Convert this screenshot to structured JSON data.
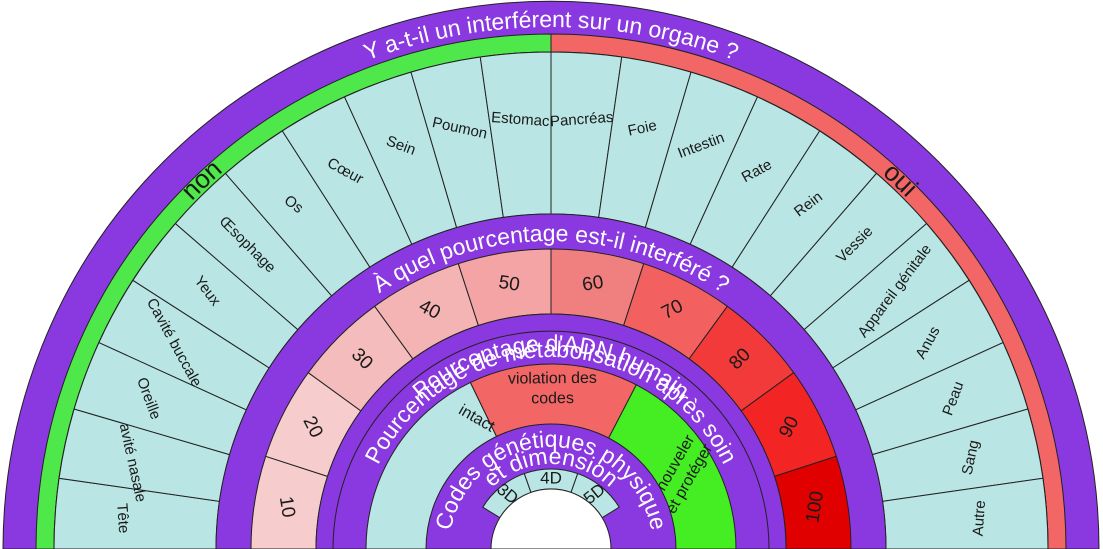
{
  "colors": {
    "purple": "#8a38e0",
    "green": "#4ee84a",
    "red": "#f26666",
    "teal": "#b9e6e4",
    "stroke": "#222222",
    "bright_green": "#44ee22"
  },
  "titles": {
    "organ_question": "Y a-t-il un interférent sur un organe ?",
    "percent_question": "À quel pourcentage est-il interféré ?",
    "dna": "Pourcentage d'ADN humain",
    "metabolisation": "Pourcentage de métabolisation après soin",
    "codes": "Codes génétiques  physique",
    "codes_line2": "et dimension"
  },
  "answers": {
    "no": "non",
    "yes": "oui"
  },
  "organs": [
    "Tête",
    "Cavité nasale",
    "Oreille",
    "Cavité buccale",
    "Yeux",
    "Œsophage",
    "Os",
    "Cœur",
    "Sein",
    "Poumon",
    "Estomac",
    "Pancréas",
    "Foie",
    "Intestin",
    "Rate",
    "Rein",
    "Vessie",
    "Appareil génitale",
    "Anus",
    "Peau",
    "Sang",
    "Autre"
  ],
  "percentages": [
    {
      "label": "10",
      "color": "#f6cccc"
    },
    {
      "label": "20",
      "color": "#f6cccc"
    },
    {
      "label": "30",
      "color": "#f4bcbc"
    },
    {
      "label": "40",
      "color": "#f4b4b4"
    },
    {
      "label": "50",
      "color": "#f4a4a4"
    },
    {
      "label": "60",
      "color": "#f08080"
    },
    {
      "label": "70",
      "color": "#f26060"
    },
    {
      "label": "80",
      "color": "#f23a3a"
    },
    {
      "label": "90",
      "color": "#f22424"
    },
    {
      "label": "100",
      "color": "#e00000"
    }
  ],
  "metabolisation": [
    {
      "label": "intact",
      "color": "#b9e6e4"
    },
    {
      "label": "violation des",
      "label2": "codes",
      "color": "#f26666"
    },
    {
      "label": "renouveler",
      "label2": "et protéger",
      "color": "#44ee22"
    }
  ],
  "dimensions": [
    "3D",
    "4D",
    "5D"
  ]
}
